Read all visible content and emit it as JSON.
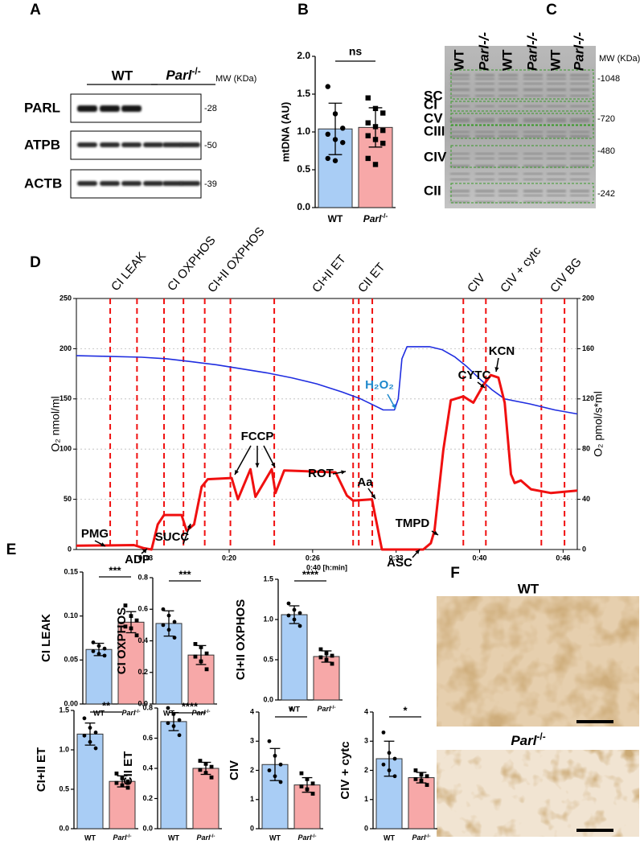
{
  "panel_labels": {
    "a": "A",
    "b": "B",
    "c": "C",
    "d": "D",
    "e": "E",
    "f": "F"
  },
  "blot_a": {
    "groups": [
      "WT",
      "Parl-/-"
    ],
    "mw_header": "MW (KDa)",
    "rows": [
      {
        "label": "PARL",
        "mw": "-28"
      },
      {
        "label": "ATPB",
        "mw": "-50"
      },
      {
        "label": "ACTB",
        "mw": "-39"
      }
    ]
  },
  "gel_c": {
    "lanes": [
      "WT",
      "Parl-/-",
      "WT",
      "Parl-/-",
      "WT",
      "Parl-/-"
    ],
    "mw_header": "MW (KDa)",
    "complexes": [
      "SC",
      "CI",
      "CV",
      "CIII",
      "CIV",
      "CII"
    ],
    "mw": [
      "-1048",
      "-720",
      "-480",
      "-242"
    ]
  },
  "image_f": {
    "labels": [
      "WT",
      "Parl-/-"
    ]
  },
  "chart_data": [
    {
      "type": "bar",
      "ylabel": "mtDNA (AU)",
      "categories": [
        "WT",
        "Parl-/-"
      ],
      "values": [
        1.04,
        1.06
      ],
      "errors": [
        0.34,
        0.26
      ],
      "colors": [
        "#a9cdf5",
        "#f7a8a8"
      ],
      "points": [
        [
          1.6,
          1.24,
          1.05,
          0.97,
          0.9,
          0.86,
          0.65,
          0.62
        ],
        [
          1.45,
          1.31,
          1.25,
          1.12,
          1.07,
          1.02,
          0.95,
          0.9,
          0.85,
          0.65,
          0.57
        ]
      ],
      "ylim": [
        0,
        2
      ],
      "yticks": [
        {
          "value": 0,
          "label": "0.0"
        },
        0.5,
        {
          "value": 1,
          "label": "1.0"
        },
        1.5,
        {
          "value": 2,
          "label": "2.0"
        }
      ],
      "significance": "ns"
    },
    {
      "type": "line",
      "xlabel": "0:40 [h:min]",
      "ylabel": "O₂ nmol/ml",
      "y2label": "O₂ pmol/s*ml",
      "xlim": [
        7.8,
        47.8
      ],
      "xticks": [
        {
          "value": 13.333,
          "label": "0:13"
        },
        {
          "value": 20,
          "label": "0:20"
        },
        {
          "value": 26.667,
          "label": "0:26"
        },
        {
          "value": 33.333,
          "label": "0:33"
        },
        {
          "value": 40,
          "label": "0:40"
        },
        {
          "value": 46.667,
          "label": "0:46"
        }
      ],
      "ylim": [
        0,
        250
      ],
      "yticks": [
        0,
        50,
        100,
        150,
        200,
        250
      ],
      "y2lim": [
        0,
        200
      ],
      "y2ticks": [
        0,
        40,
        80,
        120,
        160,
        200
      ],
      "grid": true,
      "series": [
        {
          "color": "#1f2de0",
          "x": [
            7.8,
            10,
            13,
            15,
            17,
            19,
            21,
            23,
            25,
            27,
            29,
            30.5,
            31.5,
            32.3,
            33.2,
            33.5,
            33.8,
            34.2,
            36,
            37,
            38,
            39,
            40,
            41,
            42,
            44,
            46,
            47.8
          ],
          "values": [
            193,
            192.5,
            191.5,
            190,
            187,
            184,
            180,
            176,
            171,
            165,
            157,
            150,
            144,
            139,
            139,
            150,
            190,
            202,
            202,
            199,
            192,
            182,
            170,
            159,
            150,
            145,
            139,
            135
          ]
        },
        {
          "color": "#f01010",
          "axis": "y2",
          "x": [
            7.8,
            12.4,
            13.2,
            13.8,
            14.3,
            14.8,
            16.2,
            16.6,
            17.2,
            17.8,
            18.3,
            20.2,
            20.7,
            21.7,
            22.1,
            23.4,
            23.7,
            24.4,
            28.5,
            29.4,
            29.9,
            31.4,
            32.2,
            35.5,
            36.1,
            36.4,
            37.1,
            37.7,
            38.7,
            39.5,
            40.3,
            40.9,
            41.5,
            42,
            42.5,
            42.8,
            43.3,
            44.1,
            45.7,
            47.8
          ],
          "values": [
            3,
            3.5,
            1,
            0,
            20,
            27.5,
            27.5,
            15,
            20,
            50,
            56,
            57,
            40,
            64,
            42,
            64,
            45,
            63,
            61.5,
            43,
            39,
            40,
            0,
            0,
            5,
            15,
            79,
            119,
            122,
            117,
            131,
            139,
            137,
            117,
            60,
            53,
            55,
            48,
            45,
            47
          ]
        }
      ],
      "events": [
        10.5,
        12.64,
        14.8,
        16.35,
        18.05,
        20.1,
        23.6,
        29.9,
        30.35,
        31.43,
        38.7,
        40.5,
        44.93,
        46.78
      ],
      "event_color": "#f01010",
      "regions": [
        "CI LEAK",
        "CI OXPHOS",
        "CI+II OXPHOS",
        "CI+II ET",
        "CII ET",
        "CIV",
        "CIV + cytc",
        "CIV BG"
      ],
      "annotations": [
        "PMG",
        "ADP",
        "SUCC",
        "FCCP",
        "ROT",
        "Aa",
        "ASC",
        "TMPD",
        "CYTC",
        "KCN",
        "H₂O₂"
      ]
    },
    {
      "type": "bar",
      "ylabel": "CI LEAK",
      "categories": [
        "WT",
        "Parl-/-"
      ],
      "values": [
        0.062,
        0.093
      ],
      "errors": [
        0.007,
        0.012
      ],
      "colors": [
        "#a9cdf5",
        "#f7a8a8"
      ],
      "points": [
        [
          0.07,
          0.066,
          0.063,
          0.06,
          0.057,
          0.055
        ],
        [
          0.112,
          0.1,
          0.095,
          0.088,
          0.086,
          0.078
        ]
      ],
      "ylim": [
        0,
        0.15
      ],
      "yticks": [
        {
          "value": 0,
          "label": "0.00"
        },
        0.05,
        {
          "value": 0.1,
          "label": "0.10"
        },
        0.15
      ],
      "significance": "***"
    },
    {
      "type": "bar",
      "ylabel": "CI OXPHOS",
      "categories": [
        "WT",
        "Parl-/-"
      ],
      "values": [
        0.51,
        0.31
      ],
      "errors": [
        0.08,
        0.06
      ],
      "colors": [
        "#a9cdf5",
        "#f7a8a8"
      ],
      "points": [
        [
          0.6,
          0.56,
          0.52,
          0.5,
          0.47,
          0.42
        ],
        [
          0.38,
          0.36,
          0.32,
          0.3,
          0.27,
          0.22
        ]
      ],
      "ylim": [
        0,
        0.8
      ],
      "yticks": [
        {
          "value": 0,
          "label": "0.0"
        },
        0.2,
        0.4,
        0.6,
        0.8
      ],
      "significance": "***"
    },
    {
      "type": "bar",
      "ylabel": "CI+II OXPHOS",
      "categories": [
        "WT",
        "Parl-/-"
      ],
      "values": [
        1.06,
        0.54
      ],
      "errors": [
        0.11,
        0.07
      ],
      "colors": [
        "#a9cdf5",
        "#f7a8a8"
      ],
      "points": [
        [
          1.2,
          1.12,
          1.08,
          1.05,
          1.0,
          0.92
        ],
        [
          0.63,
          0.58,
          0.55,
          0.53,
          0.5,
          0.45
        ]
      ],
      "ylim": [
        0,
        1.5
      ],
      "yticks": [
        {
          "value": 0,
          "label": "0.0"
        },
        0.5,
        {
          "value": 1,
          "label": "1.0"
        },
        1.5
      ],
      "significance": "****"
    },
    {
      "type": "bar",
      "ylabel": "CI+II ET",
      "categories": [
        "WT",
        "Parl-/-"
      ],
      "values": [
        1.2,
        0.6
      ],
      "errors": [
        0.14,
        0.07
      ],
      "colors": [
        "#a9cdf5",
        "#f7a8a8"
      ],
      "points": [
        [
          1.4,
          1.28,
          1.22,
          1.18,
          1.1,
          1.02
        ],
        [
          0.7,
          0.64,
          0.6,
          0.58,
          0.55,
          0.52
        ]
      ],
      "ylim": [
        0,
        1.5
      ],
      "yticks": [
        {
          "value": 0,
          "label": "0.0"
        },
        0.5,
        {
          "value": 1,
          "label": "1.0"
        },
        1.5
      ],
      "significance": "**"
    },
    {
      "type": "bar",
      "ylabel": "CII ET",
      "categories": [
        "WT",
        "Parl-/-"
      ],
      "values": [
        0.71,
        0.4
      ],
      "errors": [
        0.06,
        0.04
      ],
      "colors": [
        "#a9cdf5",
        "#f7a8a8"
      ],
      "points": [
        [
          0.8,
          0.76,
          0.72,
          0.7,
          0.68,
          0.62
        ],
        [
          0.45,
          0.43,
          0.41,
          0.39,
          0.37,
          0.34
        ]
      ],
      "ylim": [
        0,
        0.8
      ],
      "yticks": [
        {
          "value": 0,
          "label": "0.0"
        },
        0.2,
        0.4,
        0.6,
        0.8
      ],
      "significance": "****"
    },
    {
      "type": "bar",
      "ylabel": "CIV",
      "categories": [
        "WT",
        "Parl-/-"
      ],
      "values": [
        2.2,
        1.5
      ],
      "errors": [
        0.55,
        0.25
      ],
      "colors": [
        "#a9cdf5",
        "#f7a8a8"
      ],
      "points": [
        [
          3.0,
          2.5,
          2.2,
          2.0,
          1.8,
          1.6
        ],
        [
          1.9,
          1.7,
          1.55,
          1.45,
          1.35,
          1.2
        ]
      ],
      "ylim": [
        0,
        4
      ],
      "yticks": [
        0,
        1,
        2,
        3,
        4
      ],
      "significance": "*"
    },
    {
      "type": "bar",
      "ylabel": "CIV + cytc",
      "categories": [
        "WT",
        "Parl-/-"
      ],
      "values": [
        2.4,
        1.75
      ],
      "errors": [
        0.6,
        0.18
      ],
      "colors": [
        "#a9cdf5",
        "#f7a8a8"
      ],
      "points": [
        [
          3.3,
          2.6,
          2.4,
          2.2,
          2.0,
          1.8
        ],
        [
          2.0,
          1.85,
          1.8,
          1.7,
          1.65,
          1.5
        ]
      ],
      "ylim": [
        0,
        4
      ],
      "yticks": [
        0,
        1,
        2,
        3,
        4
      ],
      "significance": "*"
    }
  ]
}
